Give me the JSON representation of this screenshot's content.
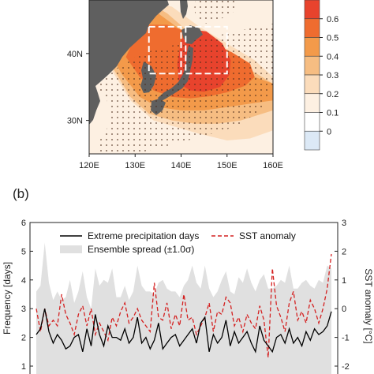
{
  "chart_data": [
    {
      "type": "heatmap",
      "panel_label": "",
      "x_ticks": [
        "120E",
        "130E",
        "140E",
        "150E",
        "160E"
      ],
      "x_tick_values": [
        120,
        130,
        140,
        150,
        160
      ],
      "y_ticks": [
        "30N",
        "40N"
      ],
      "y_tick_values": [
        30,
        40
      ],
      "xlim": [
        120,
        160
      ],
      "ylim": [
        25,
        48
      ],
      "colorbar": {
        "ticks": [
          "0.6",
          "0.5",
          "0.4",
          "0.3",
          "0.2",
          "0.1",
          "0"
        ],
        "levels": [
          0.6,
          0.5,
          0.4,
          0.3,
          0.2,
          0.1,
          0
        ],
        "colors": [
          "#e8432d",
          "#ef6c2f",
          "#f39a4a",
          "#f6bd82",
          "#fbdcbb",
          "#fdf0e2",
          "#ffffff",
          "#dce9f6"
        ]
      },
      "field": [
        {
          "level": 0.1,
          "lon": [
            120,
            123,
            128,
            133,
            138,
            143,
            150,
            160,
            160,
            154,
            148,
            142,
            137,
            131,
            127,
            123,
            120
          ],
          "lat": [
            45.5,
            40,
            33.5,
            30.5,
            28.5,
            27.5,
            25.5,
            25.5,
            38,
            41,
            43,
            45.8,
            48,
            48,
            46,
            46,
            45.5
          ]
        },
        {
          "level": 0.2,
          "lon": [
            121,
            124,
            129,
            134,
            139,
            144,
            150,
            155,
            160,
            160,
            156,
            150,
            144,
            138,
            132,
            128,
            124,
            121
          ],
          "lat": [
            44,
            38.5,
            33,
            30,
            29,
            28,
            27,
            27.3,
            28.5,
            36.5,
            39,
            41.5,
            44,
            47,
            48,
            48,
            46,
            44
          ]
        },
        {
          "level": 0.3,
          "lon": [
            122,
            125,
            129,
            133,
            138,
            143,
            148,
            153,
            160,
            160,
            154,
            148,
            142,
            137,
            132,
            128,
            124,
            122
          ],
          "lat": [
            43,
            38,
            33.5,
            31,
            30,
            29.5,
            29.5,
            30,
            31.5,
            35.5,
            38,
            40.5,
            43,
            46,
            48,
            48,
            45.5,
            43
          ]
        },
        {
          "level": 0.4,
          "lon": [
            124,
            127,
            131,
            135,
            140,
            145,
            150,
            155,
            160,
            160,
            154,
            149,
            144,
            139,
            134,
            130,
            127,
            124
          ],
          "lat": [
            41,
            37,
            33.5,
            32,
            31.5,
            31.5,
            32,
            32.5,
            33,
            35.5,
            37,
            39.3,
            41.5,
            44,
            46.5,
            46.5,
            44,
            41
          ]
        },
        {
          "level": 0.5,
          "lon": [
            128,
            131,
            134,
            138,
            142,
            146,
            150,
            154,
            156,
            155,
            151,
            146,
            141,
            137,
            133,
            130,
            128
          ],
          "lat": [
            39.5,
            36.5,
            34.5,
            33.5,
            33.3,
            33.6,
            34.2,
            35.2,
            36.5,
            38.5,
            40.2,
            41.8,
            43.3,
            44.3,
            44.3,
            42.5,
            39.5
          ]
        },
        {
          "level": 0.6,
          "lon": [
            139.5,
            142,
            145,
            148.5,
            150.5,
            150.8,
            149,
            145.5,
            142,
            140,
            139.2,
            139.5
          ],
          "lat": [
            35.5,
            34.5,
            34.3,
            35,
            36.8,
            39,
            41.5,
            43.3,
            43.6,
            42,
            38.5,
            35.5
          ]
        }
      ],
      "boxes": [
        {
          "lon": [
            133,
            140
          ],
          "lat": [
            37,
            44
          ]
        },
        {
          "lon": [
            141,
            150
          ],
          "lat": [
            37,
            44
          ]
        }
      ]
    },
    {
      "type": "line",
      "panel_label": "(b)",
      "ylabel": "Frequency [days]",
      "y2label": "SST anomaly [°C]",
      "ylim": [
        1,
        6
      ],
      "y2lim": [
        -2,
        3
      ],
      "y_ticks": [
        1,
        2,
        3,
        4,
        5,
        6
      ],
      "y2_ticks": [
        "-2",
        "-1",
        "0",
        "1",
        "2",
        "3"
      ],
      "y2_tick_values": [
        -2,
        -1,
        0,
        1,
        2,
        3
      ],
      "x": [
        1,
        2,
        3,
        4,
        5,
        6,
        7,
        8,
        9,
        10,
        11,
        12,
        13,
        14,
        15,
        16,
        17,
        18,
        19,
        20,
        21,
        22,
        23,
        24,
        25,
        26,
        27,
        28,
        29,
        30,
        31,
        32,
        33,
        34,
        35,
        36,
        37,
        38,
        39,
        40,
        41,
        42,
        43,
        44,
        45,
        46,
        47,
        48,
        49,
        50,
        51,
        52,
        53,
        54,
        55,
        56,
        57,
        58,
        59,
        60,
        61,
        62,
        63,
        64,
        65,
        66,
        67,
        68,
        69,
        70,
        71
      ],
      "series": [
        {
          "name": "Extreme precipitation days",
          "style": "solid",
          "color": "#000000",
          "values": [
            2.1,
            2.3,
            3.0,
            2.2,
            1.8,
            2.1,
            1.9,
            1.6,
            1.7,
            2.0,
            2.1,
            1.5,
            2.3,
            1.7,
            2.8,
            2.1,
            1.7,
            2.4,
            2.0,
            2.0,
            1.9,
            2.3,
            1.8,
            2.0,
            2.7,
            1.8,
            2.0,
            1.6,
            1.9,
            2.5,
            1.6,
            1.8,
            2.0,
            2.1,
            1.7,
            1.9,
            2.1,
            2.3,
            1.8,
            2.5,
            2.7,
            1.5,
            2.1,
            1.8,
            2.0,
            2.6,
            1.7,
            2.2,
            1.8,
            2.0,
            2.2,
            1.8,
            1.5,
            2.4,
            1.9,
            1.7,
            1.5,
            2.0,
            2.1,
            1.8,
            2.3,
            1.8,
            2.0,
            1.7,
            2.2,
            1.9,
            2.3,
            2.1,
            2.2,
            2.4,
            2.9
          ]
        },
        {
          "name": "SST anomaly",
          "style": "dashed",
          "color": "#d42020",
          "axis": "right",
          "values": [
            0.0,
            -0.8,
            0.0,
            -0.6,
            -0.4,
            -0.6,
            0.5,
            -0.2,
            -0.5,
            -0.9,
            -0.2,
            0.1,
            -0.6,
            0.0,
            -0.9,
            -0.5,
            -0.8,
            -1.1,
            -0.3,
            -0.6,
            -0.1,
            0.2,
            -0.5,
            -0.3,
            0.0,
            -0.4,
            -0.6,
            -0.8,
            0.9,
            -0.3,
            -0.4,
            0.2,
            -0.7,
            -0.2,
            -0.6,
            0.5,
            -0.4,
            -0.3,
            -0.9,
            -0.6,
            -0.3,
            0.2,
            -0.8,
            -0.1,
            -0.2,
            0.4,
            0.2,
            -0.6,
            -0.3,
            -0.8,
            -0.2,
            -0.5,
            -0.7,
            0.1,
            -0.4,
            -1.7,
            1.4,
            0.1,
            -0.3,
            -0.8,
            0.2,
            0.6,
            -0.4,
            -0.1,
            -0.5,
            0.3,
            0.0,
            -0.5,
            0.0,
            0.7,
            1.9
          ]
        },
        {
          "name": "Ensemble spread (±1.0σ)",
          "style": "band",
          "color": "#e0e0e0",
          "upper": [
            3.6,
            3.8,
            5.3,
            3.9,
            3.3,
            3.6,
            3.3,
            3.4,
            4.0,
            3.2,
            3.6,
            4.3,
            3.4,
            3.0,
            4.4,
            3.8,
            4.0,
            3.9,
            4.4,
            3.4,
            3.4,
            3.8,
            3.3,
            3.6,
            4.5,
            3.8,
            3.6,
            3.6,
            3.5,
            3.9,
            4.0,
            3.7,
            3.6,
            3.6,
            3.4,
            3.8,
            4.0,
            4.5,
            3.9,
            3.7,
            4.5,
            3.7,
            3.4,
            3.6,
            4.0,
            4.3,
            3.6,
            3.5,
            4.1,
            3.9,
            4.4,
            3.9,
            3.6,
            4.0,
            4.2,
            3.7,
            3.7,
            3.8,
            4.0,
            3.9,
            4.5,
            3.7,
            3.7,
            3.9,
            4.0,
            3.8,
            3.7,
            4.0,
            3.9,
            4.5,
            4.4
          ],
          "lower": [
            1.0,
            1.0,
            1.1,
            1.0,
            1.0,
            1.0,
            1.0,
            1.0,
            1.0,
            1.0,
            1.0,
            1.0,
            1.0,
            1.0,
            1.0,
            1.0,
            1.0,
            1.0,
            1.0,
            1.0,
            1.0,
            1.0,
            1.0,
            1.0,
            1.0,
            1.0,
            1.0,
            1.0,
            1.0,
            1.0,
            1.0,
            1.0,
            1.0,
            1.0,
            1.0,
            1.0,
            1.0,
            1.0,
            1.0,
            1.0,
            1.0,
            1.0,
            1.0,
            1.0,
            1.0,
            1.0,
            1.0,
            1.0,
            1.0,
            1.0,
            1.0,
            1.0,
            1.0,
            1.0,
            1.0,
            1.0,
            1.0,
            1.0,
            1.0,
            1.0,
            1.0,
            1.0,
            1.0,
            1.0,
            1.0,
            1.0,
            1.0,
            1.0,
            1.0,
            1.0,
            1.0
          ]
        }
      ],
      "legend": {
        "placement": "top",
        "entries": [
          {
            "label": "Extreme precipitation days",
            "style": "solid",
            "color": "#000000"
          },
          {
            "label": "SST anomaly",
            "style": "dashed",
            "color": "#d42020"
          },
          {
            "label": "Ensemble spread (±1.0σ)",
            "style": "band",
            "color": "#e0e0e0"
          }
        ]
      }
    }
  ]
}
